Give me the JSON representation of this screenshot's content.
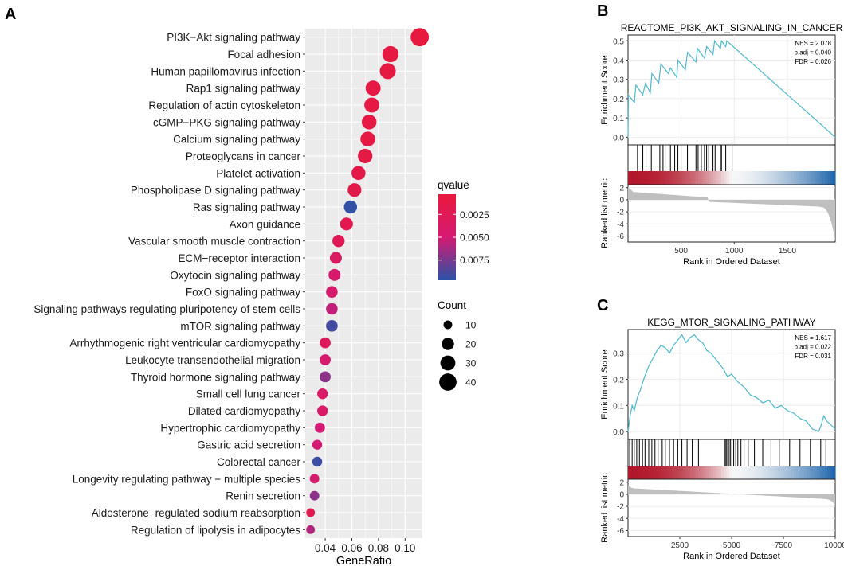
{
  "chart_data": [
    {
      "panel": "A",
      "type": "scatter",
      "subtype": "dotplot",
      "xlabel": "GeneRatio",
      "x_ticks": [
        "0.04",
        "0.06",
        "0.08",
        "0.10"
      ],
      "x_tick_values": [
        0.04,
        0.06,
        0.08,
        0.1
      ],
      "xlim": [
        0.025,
        0.113
      ],
      "grid": true,
      "terms": [
        "PI3K−Akt signaling pathway",
        "Focal adhesion",
        "Human papillomavirus infection",
        "Rap1 signaling pathway",
        "Regulation of actin cytoskeleton",
        "cGMP−PKG signaling pathway",
        "Calcium signaling pathway",
        "Proteoglycans in cancer",
        "Platelet activation",
        "Phospholipase D signaling pathway",
        "Ras signaling pathway",
        "Axon guidance",
        "Vascular smooth muscle contraction",
        "ECM−receptor interaction",
        "Oxytocin signaling pathway",
        "FoxO signaling pathway",
        "Signaling pathways regulating pluripotency of stem cells",
        "mTOR signaling pathway",
        "Arrhythmogenic right ventricular cardiomyopathy",
        "Leukocyte transendothelial migration",
        "Thyroid hormone signaling pathway",
        "Small cell lung cancer",
        "Dilated cardiomyopathy",
        "Hypertrophic cardiomyopathy",
        "Gastric acid secretion",
        "Colorectal cancer",
        "Longevity regulating pathway − multiple species",
        "Renin secretion",
        "Aldosterone−regulated sodium reabsorption",
        "Regulation of lipolysis in adipocytes"
      ],
      "gene_ratio": [
        0.111,
        0.089,
        0.087,
        0.076,
        0.075,
        0.073,
        0.072,
        0.07,
        0.065,
        0.062,
        0.059,
        0.056,
        0.05,
        0.048,
        0.047,
        0.045,
        0.045,
        0.045,
        0.04,
        0.04,
        0.04,
        0.038,
        0.038,
        0.036,
        0.034,
        0.034,
        0.032,
        0.032,
        0.029,
        0.029
      ],
      "count": [
        44,
        35,
        34,
        30,
        30,
        29,
        29,
        28,
        26,
        25,
        23,
        22,
        20,
        19,
        19,
        18,
        18,
        18,
        16,
        16,
        16,
        15,
        15,
        14,
        13,
        13,
        12,
        12,
        10,
        10
      ],
      "qvalue": [
        0.0005,
        0.0008,
        0.0008,
        0.001,
        0.001,
        0.001,
        0.001,
        0.0012,
        0.0013,
        0.0015,
        0.0095,
        0.002,
        0.0025,
        0.0035,
        0.0045,
        0.0045,
        0.0055,
        0.009,
        0.003,
        0.0045,
        0.007,
        0.004,
        0.004,
        0.005,
        0.005,
        0.0092,
        0.0045,
        0.007,
        0.002,
        0.006
      ],
      "legend_color": {
        "title": "qvalue",
        "ticks": [
          "0.0025",
          "0.0050",
          "0.0075"
        ],
        "tick_values": [
          0.0025,
          0.005,
          0.0075
        ],
        "range": [
          0.0003,
          0.0097
        ],
        "low_color": "#e8193c",
        "mid_color": "#d41a72",
        "high_color": "#2a52a8"
      },
      "legend_size": {
        "title": "Count",
        "labels": [
          "10",
          "20",
          "30",
          "40"
        ],
        "values": [
          10,
          20,
          30,
          40
        ]
      }
    },
    {
      "panel": "B",
      "type": "line",
      "subtype": "gsea",
      "title": "REACTOME_PI3K_AKT_SIGNALING_IN_CANCER",
      "ylabel_top": "Enrichment Score",
      "ylabel_bottom": "Ranked list metric",
      "xlabel": "Rank in Ordered Dataset",
      "stats": [
        "NES = 2.078",
        "p.adj = 0.040",
        "FDR = 0.026"
      ],
      "x_range": [
        1,
        1950
      ],
      "x_ticks": [
        "500",
        "1000",
        "1500"
      ],
      "x_tick_values": [
        500,
        1000,
        1500
      ],
      "es_ylim": [
        -0.04,
        0.53
      ],
      "es_ticks": [
        "0.0",
        "0.1",
        "0.2",
        "0.3",
        "0.4",
        "0.5"
      ],
      "es_tick_values": [
        0,
        0.1,
        0.2,
        0.3,
        0.4,
        0.5
      ],
      "es_x": [
        1,
        5,
        60,
        75,
        140,
        165,
        210,
        225,
        290,
        310,
        380,
        400,
        460,
        470,
        540,
        560,
        640,
        655,
        720,
        740,
        800,
        815,
        870,
        880,
        920,
        930,
        1950
      ],
      "es_y": [
        0.0,
        0.22,
        0.18,
        0.27,
        0.22,
        0.28,
        0.23,
        0.33,
        0.28,
        0.38,
        0.33,
        0.36,
        0.31,
        0.4,
        0.35,
        0.44,
        0.39,
        0.46,
        0.41,
        0.47,
        0.43,
        0.5,
        0.46,
        0.5,
        0.47,
        0.5,
        0.0
      ],
      "hit_ranks": [
        90,
        140,
        170,
        220,
        300,
        330,
        350,
        400,
        440,
        470,
        500,
        560,
        640,
        660,
        690,
        720,
        740,
        760,
        800,
        820,
        870,
        880,
        920,
        980
      ],
      "rank_metric_ticks": [
        "2",
        "0",
        "-2",
        "-4",
        "-6"
      ],
      "rank_metric_tick_values": [
        2,
        0,
        -2,
        -4,
        -6
      ],
      "rank_metric_ylim": [
        -7,
        2.5
      ]
    },
    {
      "panel": "C",
      "type": "line",
      "subtype": "gsea",
      "title": "KEGG_MTOR_SIGNALING_PATHWAY",
      "ylabel_top": "Enrichment Score",
      "ylabel_bottom": "Ranked list metric",
      "xlabel": "Rank in Ordered Dataset",
      "stats": [
        "NES = 1.617",
        "p.adj = 0.022",
        "FDR = 0.031"
      ],
      "x_range": [
        1,
        10000
      ],
      "x_ticks": [
        "2500",
        "5000",
        "7500",
        "10000"
      ],
      "x_tick_values": [
        2500,
        5000,
        7500,
        10000
      ],
      "es_ylim": [
        -0.03,
        0.39
      ],
      "es_ticks": [
        "0.0",
        "0.1",
        "0.2",
        "0.3"
      ],
      "es_tick_values": [
        0,
        0.1,
        0.2,
        0.3
      ],
      "es_x": [
        1,
        100,
        200,
        300,
        450,
        600,
        800,
        1000,
        1200,
        1400,
        1600,
        1800,
        2000,
        2200,
        2400,
        2600,
        2800,
        3000,
        3200,
        3400,
        3600,
        3800,
        4000,
        4200,
        4400,
        4600,
        4800,
        5000,
        5300,
        5600,
        5900,
        6200,
        6500,
        6800,
        7100,
        7400,
        7700,
        8000,
        8300,
        8600,
        8900,
        9200,
        9300,
        9450,
        9600,
        10000
      ],
      "es_y": [
        0.0,
        0.06,
        0.1,
        0.08,
        0.13,
        0.16,
        0.21,
        0.25,
        0.28,
        0.31,
        0.33,
        0.32,
        0.3,
        0.33,
        0.35,
        0.37,
        0.34,
        0.36,
        0.37,
        0.35,
        0.34,
        0.31,
        0.3,
        0.28,
        0.26,
        0.24,
        0.21,
        0.22,
        0.19,
        0.17,
        0.14,
        0.13,
        0.11,
        0.12,
        0.09,
        0.1,
        0.08,
        0.07,
        0.05,
        0.04,
        0.01,
        0.0,
        0.02,
        0.06,
        0.04,
        0.01
      ],
      "hit_ranks": [
        80,
        200,
        300,
        420,
        550,
        700,
        820,
        1000,
        1150,
        1300,
        1450,
        1650,
        1800,
        2000,
        2200,
        2400,
        2600,
        2850,
        3100,
        3400,
        4650,
        4700,
        4760,
        4820,
        4880,
        4950,
        5020,
        5100,
        5200,
        5300,
        5450,
        5600,
        5800,
        6100,
        6500,
        6900,
        7300,
        7800,
        8300,
        8800,
        9300,
        9550
      ],
      "rank_metric_ticks": [
        "2",
        "0",
        "-2",
        "-4",
        "-6"
      ],
      "rank_metric_tick_values": [
        2,
        0,
        -2,
        -4,
        -6
      ],
      "rank_metric_ylim": [
        -7,
        2.5
      ]
    }
  ],
  "colors": {
    "panel_bg": "#ebebeb",
    "grid_major": "#ffffff",
    "es_line": "#4db8d0",
    "metric_fill": "#bfbfbf",
    "heat_red": "#b2182b",
    "heat_white": "#f7f7f7",
    "heat_blue": "#2166ac"
  }
}
